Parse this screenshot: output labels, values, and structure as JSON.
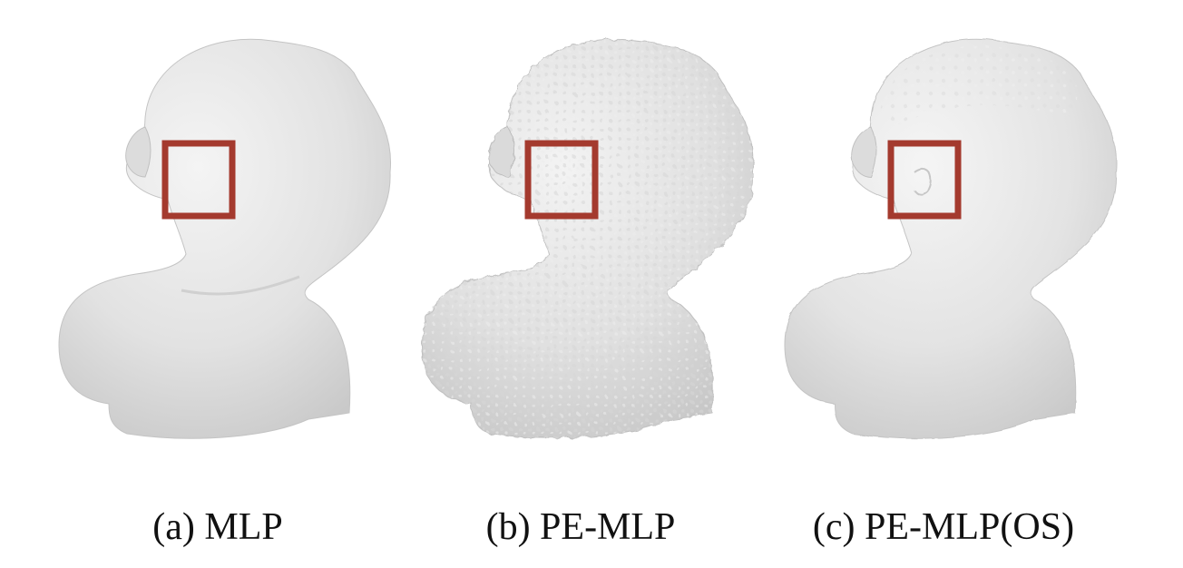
{
  "figure": {
    "panels": [
      {
        "id": "a",
        "caption": "(a) MLP",
        "surface": "smooth",
        "highlight_color": "#a43a2e"
      },
      {
        "id": "b",
        "caption": "(b) PE-MLP",
        "surface": "noisy",
        "highlight_color": "#a43a2e"
      },
      {
        "id": "c",
        "caption": "(c) PE-MLP(OS)",
        "surface": "detailed",
        "highlight_color": "#a43a2e"
      }
    ]
  }
}
